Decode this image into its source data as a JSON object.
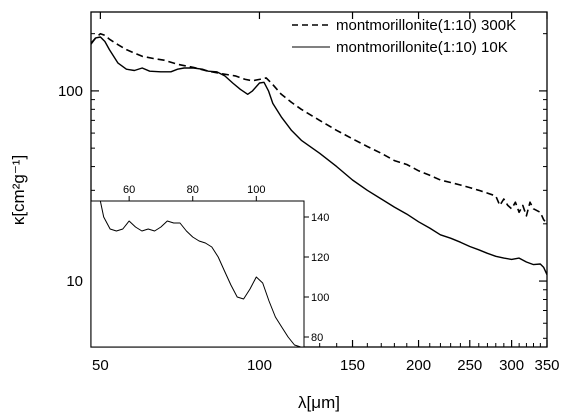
{
  "chart_data": [
    {
      "type": "line",
      "title": "",
      "xlabel": "λ[μm]",
      "ylabel": "κ[cm²g⁻¹]",
      "xscale": "log",
      "yscale": "log",
      "xlim": [
        48,
        350
      ],
      "ylim": [
        4.5,
        260
      ],
      "x_ticks": [
        50,
        100,
        150,
        200,
        250,
        300,
        350
      ],
      "x_tick_labels": [
        "50",
        "100",
        "150",
        "200",
        "250",
        "300",
        "350"
      ],
      "y_ticks": [
        10,
        100
      ],
      "y_tick_labels": [
        "10",
        "100"
      ],
      "legend_position": "top-right",
      "series": [
        {
          "name": "montmorillonite(1:10) 300K",
          "style": "dashed",
          "x": [
            48,
            49,
            50,
            51,
            52,
            54,
            56,
            58,
            60,
            63,
            66,
            70,
            75,
            80,
            85,
            90,
            94,
            97,
            100,
            103,
            106,
            110,
            115,
            120,
            130,
            140,
            150,
            160,
            170,
            180,
            190,
            200,
            210,
            220,
            230,
            240,
            250,
            260,
            270,
            280,
            285,
            290,
            295,
            300,
            305,
            310,
            315,
            320,
            325,
            330,
            340,
            345,
            350
          ],
          "y": [
            178,
            190,
            200,
            196,
            187,
            175,
            165,
            158,
            152,
            148,
            145,
            138,
            133,
            127,
            123,
            120,
            115,
            113,
            115,
            117,
            108,
            96,
            87,
            80,
            70,
            62,
            56,
            51,
            47,
            43,
            41,
            38,
            36,
            34,
            33,
            32,
            31,
            30,
            29,
            28,
            25,
            27,
            25,
            24,
            26,
            23,
            25,
            22,
            26,
            24,
            23,
            21,
            20
          ]
        },
        {
          "name": "montmorillonite(1:10) 10K",
          "style": "solid",
          "x": [
            48,
            49,
            50,
            51,
            52,
            54,
            56,
            58,
            60,
            62,
            65,
            68,
            70,
            72,
            75,
            78,
            80,
            83,
            86,
            89,
            92,
            95,
            97,
            100,
            102,
            104,
            106,
            110,
            115,
            120,
            130,
            140,
            150,
            160,
            170,
            180,
            190,
            200,
            210,
            220,
            230,
            240,
            250,
            260,
            270,
            280,
            290,
            300,
            310,
            320,
            330,
            340,
            345,
            350
          ],
          "y": [
            176,
            190,
            192,
            182,
            165,
            140,
            130,
            128,
            132,
            127,
            126,
            126,
            130,
            132,
            132,
            130,
            127,
            126,
            120,
            110,
            102,
            96,
            100,
            110,
            111,
            100,
            86,
            73,
            62,
            55,
            47,
            40,
            34,
            30,
            27,
            24.5,
            22.5,
            20.5,
            19,
            17.5,
            16.8,
            16,
            15.2,
            14.6,
            14,
            13.5,
            13.2,
            13,
            13.2,
            12.6,
            12.2,
            12.3,
            11.8,
            10.8
          ]
        }
      ]
    },
    {
      "type": "line",
      "title": "",
      "xlabel": "",
      "ylabel": "",
      "xlim": [
        48,
        115
      ],
      "ylim": [
        75,
        148
      ],
      "x_ticks": [
        60,
        80,
        100
      ],
      "x_tick_labels": [
        "60",
        "80",
        "100"
      ],
      "y_ticks": [
        80,
        100,
        120,
        140
      ],
      "y_tick_labels": [
        "80",
        "100",
        "120",
        "140"
      ],
      "series": [
        {
          "name": "",
          "style": "solid",
          "x": [
            50,
            52,
            54,
            56,
            58,
            60,
            62,
            64,
            66,
            68,
            70,
            72,
            74,
            76,
            78,
            80,
            82,
            84,
            86,
            88,
            90,
            92,
            94,
            96,
            98,
            100,
            102,
            104,
            106,
            108,
            110,
            112,
            114
          ],
          "y": [
            155,
            140,
            134,
            133,
            134,
            138,
            135,
            133,
            134,
            133,
            135,
            138,
            137,
            137,
            133,
            130,
            128,
            127,
            125,
            120,
            113,
            106,
            100,
            99,
            104,
            110,
            107,
            98,
            90,
            85,
            80,
            76,
            75
          ]
        }
      ]
    }
  ]
}
